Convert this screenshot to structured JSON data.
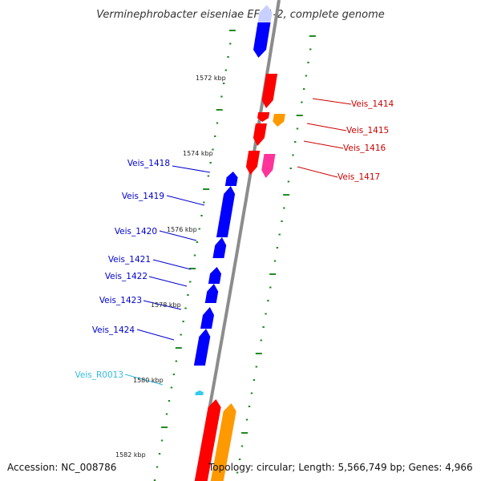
{
  "title": "Verminephrobacter eiseniae EF01-2, complete genome",
  "footer": {
    "accession": "Accession: NC_008786",
    "topology": "Topology: circular; Length: 5,566,749 bp; Genes: 4,966"
  },
  "colors": {
    "backbone": "#8c8c8c",
    "tick": "#228b22",
    "reverse_strand": "#0000ff",
    "forward_strand": "#ff0000",
    "orange_feature": "#ff9900",
    "pink_feature": "#ff3399",
    "rna_feature": "#33ccee",
    "faded_feature": "#c8d0ff"
  },
  "kbp_labels": [
    "1572 kbp",
    "1574 kbp",
    "1576 kbp",
    "1578 kbp",
    "1580 kbp",
    "1582 kbp"
  ],
  "gene_labels": {
    "right": [
      {
        "text": "Veis_1414",
        "color": "#cc0000"
      },
      {
        "text": "Veis_1415",
        "color": "#cc0000"
      },
      {
        "text": "Veis_1416",
        "color": "#cc0000"
      },
      {
        "text": "Veis_1417",
        "color": "#cc0000"
      }
    ],
    "left": [
      {
        "text": "Veis_1418",
        "color": "#0000cc"
      },
      {
        "text": "Veis_1419",
        "color": "#0000cc"
      },
      {
        "text": "Veis_1420",
        "color": "#0000cc"
      },
      {
        "text": "Veis_1421",
        "color": "#0000cc"
      },
      {
        "text": "Veis_1422",
        "color": "#0000cc"
      },
      {
        "text": "Veis_1423",
        "color": "#0000cc"
      },
      {
        "text": "Veis_1424",
        "color": "#0000cc"
      },
      {
        "text": "Veis_R0013",
        "color": "#33bbdd"
      }
    ]
  }
}
